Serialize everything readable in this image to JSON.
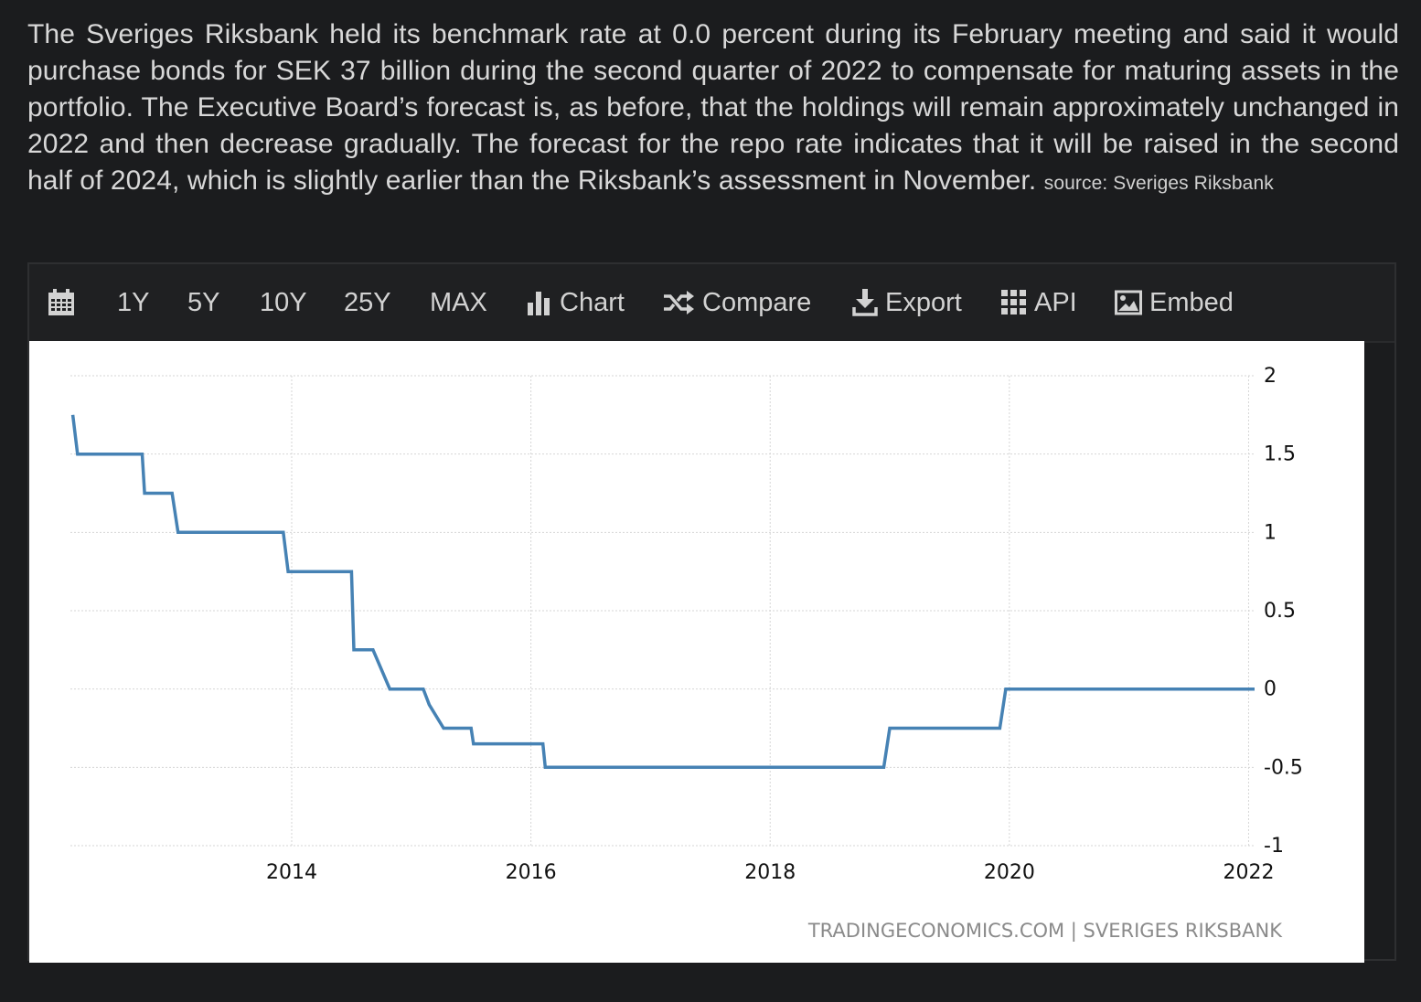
{
  "description": {
    "text": "The Sveriges Riksbank held its benchmark rate at 0.0 percent during its February meeting and said it would purchase bonds for SEK 37 billion during the second quarter of 2022 to compensate for maturing assets in the portfolio. The Executive Board’s forecast is, as before, that the holdings will remain approximately unchanged in 2022 and then decrease gradually. The forecast for the repo rate indicates that it will be raised in the second half of 2024, which is slightly earlier than the Riksbank’s assessment in November.",
    "source": "source: Sveriges Riksbank"
  },
  "toolbar": {
    "calendar_icon": "calendar-icon",
    "range_1y": "1Y",
    "range_5y": "5Y",
    "range_10y": "10Y",
    "range_25y": "25Y",
    "range_max": "MAX",
    "chart_label": "Chart",
    "compare_label": "Compare",
    "export_label": "Export",
    "api_label": "API",
    "embed_label": "Embed"
  },
  "colors": {
    "line": "#4682b4",
    "grid": "#d6d6d6",
    "background": "#ffffff",
    "page": "#1b1c1e"
  },
  "chart_data": {
    "type": "line",
    "title": "",
    "xlabel": "",
    "ylabel": "",
    "ylim": [
      -1,
      2
    ],
    "xlim": [
      2012.15,
      2022.05
    ],
    "y_ticks": [
      2,
      1.5,
      1,
      0.5,
      0,
      -0.5,
      -1
    ],
    "y_tick_labels": [
      "2",
      "1.5",
      "1",
      "0.5",
      "0",
      "-0.5",
      "-1"
    ],
    "x_ticks": [
      2014,
      2016,
      2018,
      2020,
      2022
    ],
    "x_tick_labels": [
      "2014",
      "2016",
      "2018",
      "2020",
      "2022"
    ],
    "grid": true,
    "y_axis_side": "right",
    "watermark": "TRADINGECONOMICS.COM | SVERIGES RIKSBANK",
    "series": [
      {
        "x": [
          2012.17,
          2012.21,
          2012.75,
          2012.77,
          2013.0,
          2013.05,
          2013.93,
          2013.97,
          2014.5,
          2014.52,
          2014.68,
          2014.82,
          2015.1,
          2015.15,
          2015.27,
          2015.5,
          2015.52,
          2016.1,
          2016.12,
          2018.95,
          2019.0,
          2019.92,
          2019.97,
          2022.05
        ],
        "y": [
          1.75,
          1.5,
          1.5,
          1.25,
          1.25,
          1.0,
          1.0,
          0.75,
          0.75,
          0.25,
          0.25,
          0.0,
          0.0,
          -0.1,
          -0.25,
          -0.25,
          -0.35,
          -0.35,
          -0.5,
          -0.5,
          -0.25,
          -0.25,
          0.0,
          0.0
        ]
      }
    ]
  }
}
